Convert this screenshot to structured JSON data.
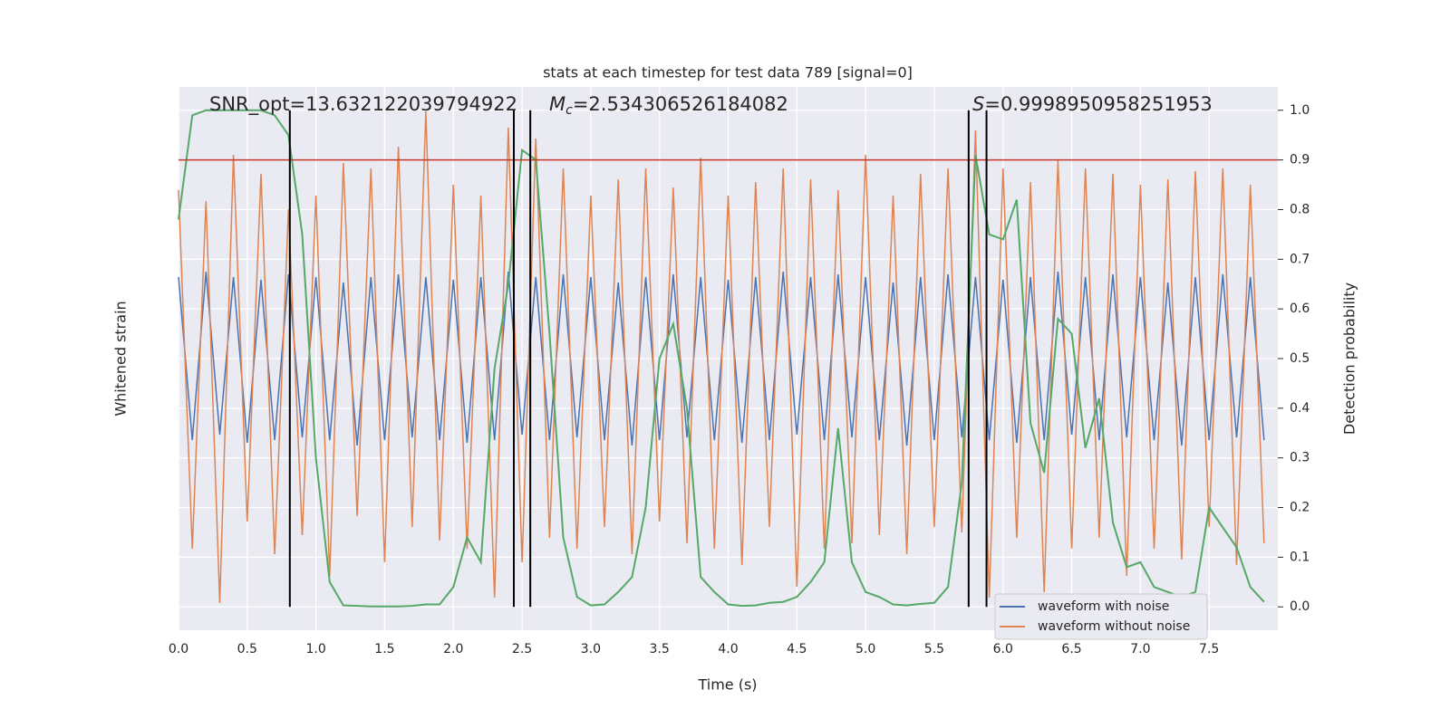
{
  "chart_data": {
    "type": "line",
    "title": "stats at each timestep for test data 789 [signal=0]",
    "xlabel": "Time (s)",
    "ylabel": "Whitened strain",
    "y2label": "Detection probability",
    "xlim": [
      0,
      8.0
    ],
    "ylim": [
      -1,
      1
    ],
    "y2lim": [
      -0.047,
      1.047
    ],
    "xticks": [
      {
        "value": 0,
        "label": "0.0"
      },
      {
        "value": 0.5,
        "label": "0.5"
      },
      {
        "value": 1,
        "label": "1.0"
      },
      {
        "value": 1.5,
        "label": "1.5"
      },
      {
        "value": 2,
        "label": "2.0"
      },
      {
        "value": 2.5,
        "label": "2.5"
      },
      {
        "value": 3,
        "label": "3.0"
      },
      {
        "value": 3.5,
        "label": "3.5"
      },
      {
        "value": 4,
        "label": "4.0"
      },
      {
        "value": 4.5,
        "label": "4.5"
      },
      {
        "value": 5,
        "label": "5.0"
      },
      {
        "value": 5.5,
        "label": "5.5"
      },
      {
        "value": 6,
        "label": "6.0"
      },
      {
        "value": 6.5,
        "label": "6.5"
      },
      {
        "value": 7,
        "label": "7.0"
      },
      {
        "value": 7.5,
        "label": "7.5"
      }
    ],
    "y2ticks": [
      {
        "value": 0,
        "label": "0.0"
      },
      {
        "value": 0.1,
        "label": "0.1"
      },
      {
        "value": 0.2,
        "label": "0.2"
      },
      {
        "value": 0.3,
        "label": "0.3"
      },
      {
        "value": 0.4,
        "label": "0.4"
      },
      {
        "value": 0.5,
        "label": "0.5"
      },
      {
        "value": 0.6,
        "label": "0.6"
      },
      {
        "value": 0.7,
        "label": "0.7"
      },
      {
        "value": 0.8,
        "label": "0.8"
      },
      {
        "value": 0.9,
        "label": "0.9"
      },
      {
        "value": 1,
        "label": "1.0"
      }
    ],
    "grid": true,
    "legend_position": "lower right",
    "x": [
      0,
      0.1,
      0.2,
      0.3,
      0.4,
      0.5,
      0.6,
      0.7,
      0.8,
      0.9,
      1,
      1.1,
      1.2,
      1.3,
      1.4,
      1.5,
      1.6,
      1.7,
      1.8,
      1.9,
      2,
      2.1,
      2.2,
      2.3,
      2.4,
      2.5,
      2.6,
      2.7,
      2.8,
      2.9,
      3,
      3.1,
      3.2,
      3.3,
      3.4,
      3.5,
      3.6,
      3.7,
      3.8,
      3.9,
      4,
      4.1,
      4.2,
      4.3,
      4.4,
      4.5,
      4.6,
      4.7,
      4.8,
      4.9,
      5,
      5.1,
      5.2,
      5.3,
      5.4,
      5.5,
      5.6,
      5.7,
      5.8,
      5.9,
      6,
      6.1,
      6.2,
      6.3,
      6.4,
      6.5,
      6.6,
      6.7,
      6.8,
      6.9,
      7,
      7.1,
      7.2,
      7.3,
      7.4,
      7.5,
      7.6,
      7.7,
      7.8,
      7.9
    ],
    "series": [
      {
        "name": "waveform with noise",
        "color": "#4c72b0",
        "axis": "y",
        "values": [
          0.3,
          -0.3,
          0.32,
          -0.28,
          0.3,
          -0.31,
          0.29,
          -0.3,
          0.31,
          -0.29,
          0.3,
          -0.3,
          0.28,
          -0.32,
          0.3,
          -0.3,
          0.31,
          -0.29,
          0.3,
          -0.3,
          0.29,
          -0.31,
          0.3,
          -0.3,
          0.32,
          -0.28,
          0.3,
          -0.3,
          0.31,
          -0.29,
          0.3,
          -0.3,
          0.28,
          -0.32,
          0.3,
          -0.3,
          0.31,
          -0.29,
          0.3,
          -0.3,
          0.29,
          -0.31,
          0.3,
          -0.3,
          0.32,
          -0.28,
          0.3,
          -0.3,
          0.31,
          -0.29,
          0.3,
          -0.3,
          0.28,
          -0.32,
          0.3,
          -0.3,
          0.31,
          -0.29,
          0.3,
          -0.3,
          0.29,
          -0.31,
          0.3,
          -0.3,
          0.32,
          -0.28,
          0.3,
          -0.3,
          0.31,
          -0.29,
          0.3,
          -0.3,
          0.28,
          -0.32,
          0.3,
          -0.3,
          0.31,
          -0.29,
          0.3,
          -0.3
        ]
      },
      {
        "name": "waveform without noise",
        "color": "#dd8452",
        "axis": "y",
        "values": [
          0.62,
          -0.7,
          0.58,
          -0.9,
          0.75,
          -0.6,
          0.68,
          -0.72,
          0.55,
          -0.65,
          0.6,
          -0.8,
          0.72,
          -0.58,
          0.7,
          -0.75,
          0.78,
          -0.62,
          0.91,
          -0.67,
          0.64,
          -0.7,
          0.6,
          -0.88,
          0.85,
          -0.75,
          0.81,
          -0.66,
          0.7,
          -0.7,
          0.6,
          -0.62,
          0.66,
          -0.72,
          0.7,
          -0.6,
          0.63,
          -0.68,
          0.74,
          -0.7,
          0.6,
          -0.76,
          0.65,
          -0.62,
          0.7,
          -0.84,
          0.66,
          -0.7,
          0.62,
          -0.68,
          0.75,
          -0.65,
          0.6,
          -0.72,
          0.68,
          -0.62,
          0.7,
          -0.64,
          0.84,
          -0.88,
          0.7,
          -0.66,
          0.65,
          -0.86,
          0.73,
          -0.7,
          0.7,
          -0.66,
          0.68,
          -0.8,
          0.64,
          -0.7,
          0.66,
          -0.74,
          0.69,
          -0.62,
          0.7,
          -0.76,
          0.64,
          -0.68
        ]
      },
      {
        "color": "#55a868",
        "axis": "y2",
        "values": [
          0.78,
          0.99,
          1.0,
          1.0,
          1.0,
          1.0,
          1.0,
          0.99,
          0.95,
          0.75,
          0.3,
          0.05,
          0.003,
          0.002,
          0.001,
          0.001,
          0.001,
          0.002,
          0.005,
          0.005,
          0.04,
          0.14,
          0.09,
          0.48,
          0.65,
          0.92,
          0.9,
          0.55,
          0.14,
          0.02,
          0.003,
          0.005,
          0.03,
          0.06,
          0.2,
          0.5,
          0.57,
          0.4,
          0.06,
          0.03,
          0.005,
          0.002,
          0.003,
          0.008,
          0.01,
          0.02,
          0.05,
          0.09,
          0.36,
          0.09,
          0.03,
          0.02,
          0.005,
          0.003,
          0.006,
          0.008,
          0.04,
          0.25,
          0.91,
          0.75,
          0.74,
          0.82,
          0.37,
          0.27,
          0.58,
          0.55,
          0.32,
          0.42,
          0.17,
          0.08,
          0.09,
          0.04,
          0.03,
          0.02,
          0.03,
          0.2,
          0.16,
          0.12,
          0.04,
          0.01
        ]
      }
    ],
    "threshold": {
      "value": 0.9,
      "color": "#c0392b"
    },
    "vlines": {
      "values": [
        0.81,
        2.44,
        2.56,
        5.75,
        5.88
      ],
      "color": "#000000"
    },
    "annotations": {
      "snr": "SNR_opt=13.632122039794922",
      "mc": {
        "symbol": "M",
        "sub": "c",
        "text": "=2.534306526184082"
      },
      "s": {
        "symbol": "S",
        "text": "=0.9998950958251953"
      }
    }
  }
}
